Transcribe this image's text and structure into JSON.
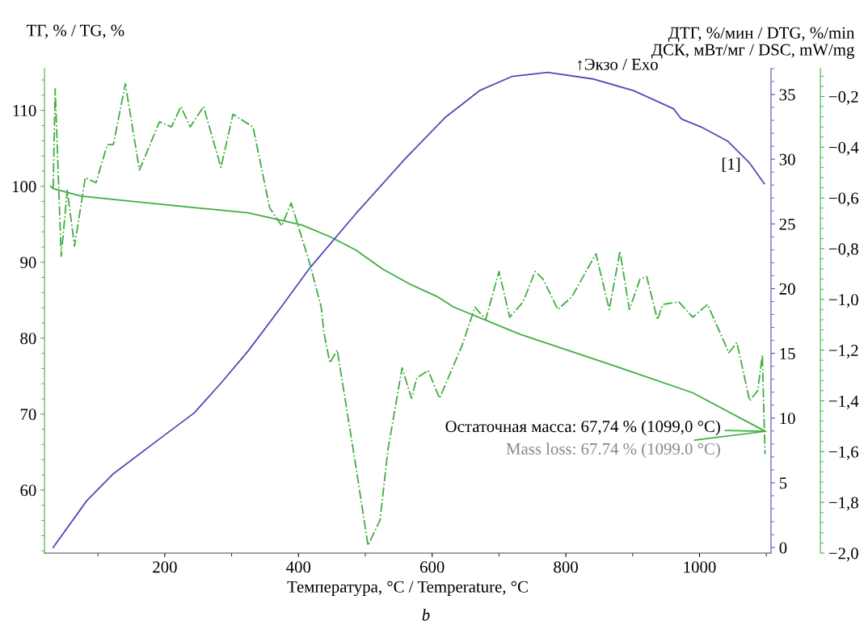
{
  "chart_data": {
    "type": "line",
    "xlabel": "Температура, °С / Temperature, °C",
    "ylabel": "ТГ, % / TG, %",
    "y2label": "ДСК, мВт/мг / DSC, mW/mg",
    "y3label": "ДТГ, %/мин / DTG, %/min",
    "xlim": [
      20,
      1107
    ],
    "xticks": [
      200,
      400,
      600,
      800,
      1000
    ],
    "ylim": [
      51.7,
      115.5
    ],
    "yticks": [
      60,
      70,
      80,
      90,
      100,
      110
    ],
    "y2lim": [
      -0.43,
      37
    ],
    "y2ticks": [
      0,
      5,
      10,
      15,
      20,
      25,
      30,
      35
    ],
    "y3lim": [
      -2.0,
      -0.09
    ],
    "y3ticks": [
      {
        "value": -2.0,
        "label": "−2,0"
      },
      {
        "value": -1.8,
        "label": "−1,8"
      },
      {
        "value": -1.6,
        "label": "−1,6"
      },
      {
        "value": -1.4,
        "label": "−1,4"
      },
      {
        "value": -1.2,
        "label": "−1,2"
      },
      {
        "value": -1.0,
        "label": "−1,0"
      },
      {
        "value": -0.8,
        "label": "−0,8"
      },
      {
        "value": -0.6,
        "label": "−0,6"
      },
      {
        "value": -0.4,
        "label": "−0,4"
      },
      {
        "value": -0.2,
        "label": "−0,2"
      }
    ],
    "grid": false,
    "legend": false,
    "series": [
      {
        "color": "#3fae3f",
        "axis": "y",
        "line_style": "solid",
        "x": [
          29,
          33,
          75,
          163,
          244,
          325,
          365,
          405,
          446,
          486,
          526,
          567,
          607,
          632,
          732,
          861,
          990,
          1099
        ],
        "values": [
          100,
          99.7,
          98.7,
          97.9,
          97.2,
          96.5,
          95.7,
          94.9,
          93.4,
          91.6,
          89.1,
          87.1,
          85.5,
          84.1,
          80.5,
          76.7,
          72.8,
          67.7
        ]
      },
      {
        "color": "#4d4db8",
        "axis": "y2",
        "line_style": "solid",
        "x": [
          33,
          83,
          123,
          200,
          244,
          284,
          325,
          373,
          417,
          486,
          559,
          619,
          671,
          720,
          773,
          840,
          901,
          961,
          973,
          1002,
          1042,
          1075,
          1097
        ],
        "values": [
          0,
          3.6,
          5.7,
          8.7,
          10.4,
          12.7,
          15.2,
          18.5,
          21.6,
          25.8,
          30.0,
          33.2,
          35.3,
          36.4,
          36.7,
          36.2,
          35.3,
          33.9,
          33.1,
          32.5,
          31.4,
          29.7,
          28.1
        ]
      },
      {
        "color": "#3fae3f",
        "axis": "y3",
        "line_style": "dashdot",
        "x": [
          33,
          36,
          45,
          54,
          65,
          81,
          97,
          114,
          123,
          141,
          162,
          192,
          210,
          224,
          238,
          258,
          284,
          302,
          332,
          357,
          375,
          389,
          417,
          434,
          438,
          447,
          458,
          486,
          504,
          522,
          534,
          555,
          569,
          577,
          594,
          611,
          645,
          664,
          680,
          700,
          716,
          736,
          754,
          766,
          788,
          809,
          845,
          865,
          881,
          895,
          911,
          921,
          937,
          945,
          969,
          990,
          1012,
          1044,
          1056,
          1075,
          1087,
          1094,
          1098
        ],
        "values": [
          -0.56,
          -0.17,
          -0.83,
          -0.57,
          -0.79,
          -0.52,
          -0.54,
          -0.39,
          -0.39,
          -0.15,
          -0.49,
          -0.3,
          -0.32,
          -0.24,
          -0.32,
          -0.24,
          -0.48,
          -0.27,
          -0.32,
          -0.64,
          -0.71,
          -0.62,
          -0.86,
          -1.03,
          -1.13,
          -1.25,
          -1.2,
          -1.66,
          -1.97,
          -1.87,
          -1.59,
          -1.27,
          -1.39,
          -1.31,
          -1.28,
          -1.39,
          -1.18,
          -1.03,
          -1.08,
          -0.89,
          -1.07,
          -1.01,
          -0.89,
          -0.92,
          -1.04,
          -0.99,
          -0.82,
          -1.04,
          -0.81,
          -1.04,
          -0.92,
          -0.91,
          -1.08,
          -1.02,
          -1.01,
          -1.07,
          -1.02,
          -1.21,
          -1.17,
          -1.4,
          -1.36,
          -1.22,
          -1.61
        ]
      }
    ],
    "annotations": [
      "↑Экзо / Exo",
      "[1]",
      "b",
      {
        "text": "Остаточная масса: 67,74 % (1099,0 °C)",
        "x": 1099,
        "y": 67.74
      },
      {
        "text": "Mass loss: 67.74 % (1099.0 °C)",
        "x": 1099,
        "y": 67.74
      }
    ]
  }
}
